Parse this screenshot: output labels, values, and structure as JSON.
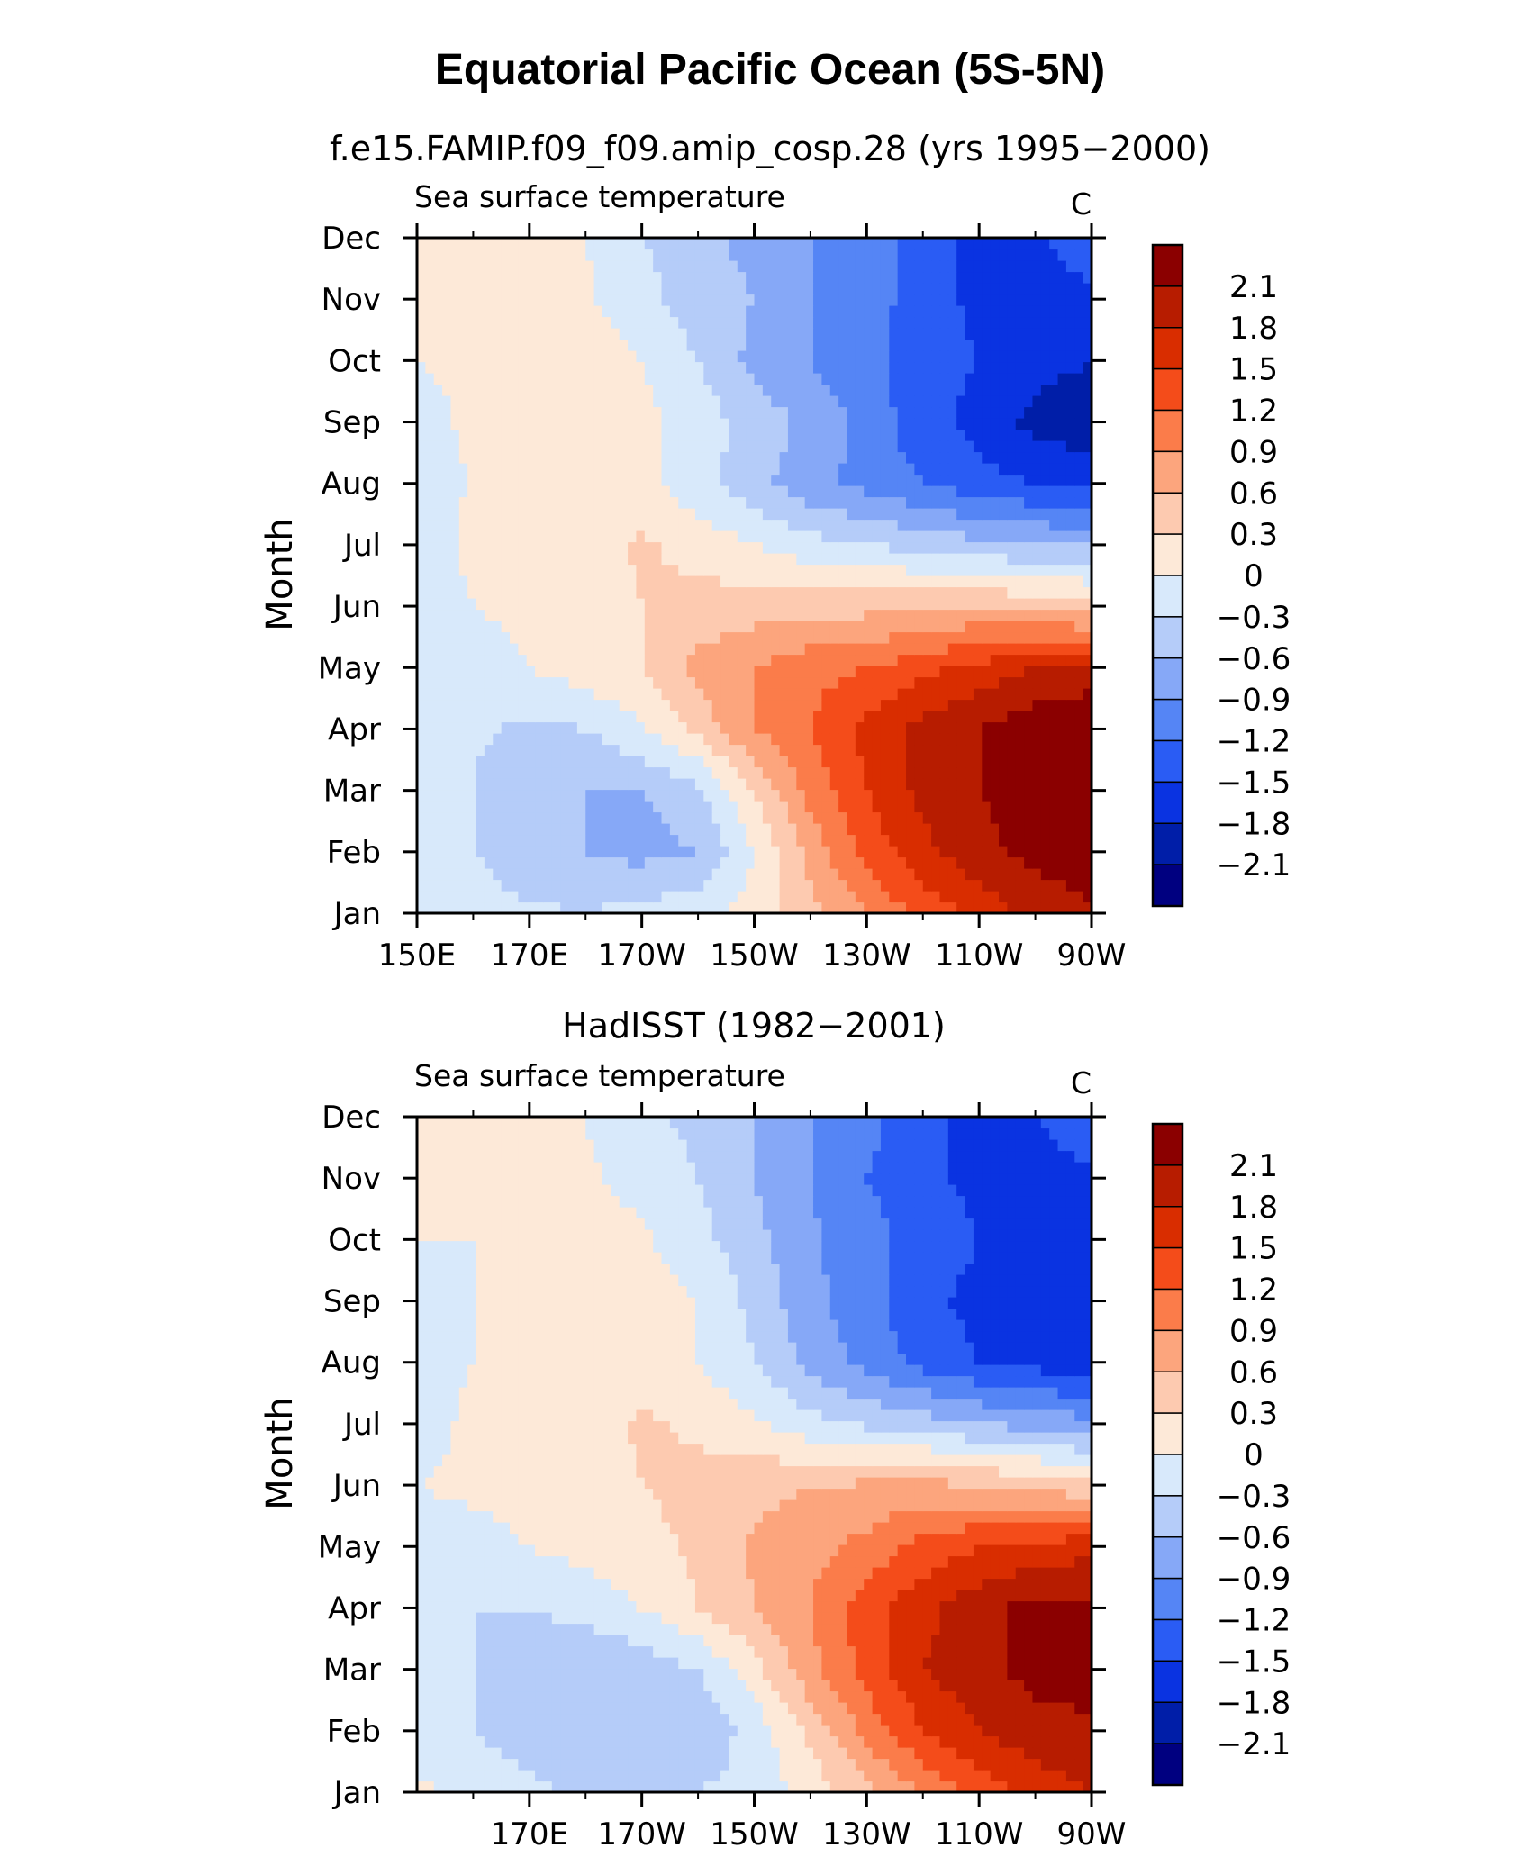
{
  "page": {
    "title": "Equatorial Pacific Ocean (5S-5N)",
    "colorbar_levels": [
      2.1,
      1.8,
      1.5,
      1.2,
      0.9,
      0.6,
      0.3,
      0,
      -0.3,
      -0.6,
      -0.9,
      -1.2,
      -1.5,
      -1.8,
      -2.1
    ],
    "colorbar_labels": [
      "2.1",
      "1.8",
      "1.5",
      "1.2",
      "0.9",
      "0.6",
      "0.3",
      "0",
      "−0.3",
      "−0.6",
      "−0.9",
      "−1.2",
      "−1.5",
      "−1.8",
      "−2.1"
    ],
    "colorbar_colors": [
      "#8b0000",
      "#b71c00",
      "#d92d00",
      "#f44c1a",
      "#fb7c4a",
      "#fca57d",
      "#fdcab0",
      "#fde9d8",
      "#d8e9fb",
      "#b5ccf9",
      "#86a8f7",
      "#5585f5",
      "#2a5cf4",
      "#0a33e1",
      "#001ea8",
      "#000080"
    ]
  },
  "chart_data": [
    {
      "type": "heatmap",
      "title": "f.e15.FAMIP.f09_f09.amip_cosp.28 (yrs 1995−2000)",
      "left_string": "Sea surface temperature",
      "right_string": "C",
      "ylabel": "Month",
      "xlabel": "",
      "x": [
        150,
        160,
        170,
        180,
        190,
        200,
        210,
        220,
        230,
        240,
        250,
        260,
        270
      ],
      "x_ticklabels": [
        "150E",
        "170E",
        "170W",
        "150W",
        "130W",
        "110W",
        "90W"
      ],
      "y_ticklabels": [
        "Jan",
        "Feb",
        "Mar",
        "Apr",
        "May",
        "Jun",
        "Jul",
        "Aug",
        "Sep",
        "Oct",
        "Nov",
        "Dec"
      ],
      "xlim": [
        150,
        270
      ],
      "values": [
        [
          0.0,
          -0.15,
          -0.25,
          -0.3,
          -0.2,
          -0.1,
          0.1,
          0.5,
          0.9,
          1.3,
          1.6,
          1.9,
          2.1
        ],
        [
          -0.2,
          -0.3,
          -0.5,
          -0.6,
          -0.7,
          -0.6,
          0.0,
          0.7,
          1.3,
          1.7,
          2.0,
          2.2,
          2.2
        ],
        [
          -0.15,
          -0.3,
          -0.6,
          -0.6,
          -0.6,
          -0.4,
          0.3,
          1.0,
          1.5,
          1.9,
          2.1,
          2.3,
          2.4
        ],
        [
          -0.2,
          -0.25,
          -0.35,
          -0.3,
          -0.05,
          0.4,
          0.9,
          1.2,
          1.6,
          1.9,
          2.1,
          2.3,
          2.4
        ],
        [
          -0.1,
          -0.1,
          0.0,
          0.15,
          0.3,
          0.7,
          0.9,
          1.1,
          1.2,
          1.4,
          1.6,
          1.8,
          1.9
        ],
        [
          -0.1,
          0.0,
          0.05,
          0.15,
          0.3,
          0.4,
          0.45,
          0.5,
          0.5,
          0.55,
          0.6,
          0.5,
          0.4
        ],
        [
          -0.1,
          0.05,
          0.1,
          0.15,
          0.35,
          0.2,
          0.0,
          -0.2,
          -0.3,
          -0.4,
          -0.5,
          -0.6,
          -0.6
        ],
        [
          -0.05,
          0.0,
          0.05,
          0.1,
          0.1,
          -0.2,
          -0.5,
          -0.8,
          -1.0,
          -1.2,
          -1.4,
          -1.5,
          -1.6
        ],
        [
          -0.1,
          0.05,
          0.15,
          0.2,
          0.1,
          -0.15,
          -0.4,
          -0.7,
          -1.0,
          -1.4,
          -1.6,
          -1.9,
          -2.0
        ],
        [
          0.0,
          0.05,
          0.1,
          0.15,
          0.0,
          -0.3,
          -0.7,
          -0.9,
          -1.1,
          -1.4,
          -1.5,
          -1.7,
          -1.8
        ],
        [
          0.1,
          0.05,
          0.05,
          0.05,
          -0.2,
          -0.45,
          -0.6,
          -0.9,
          -1.1,
          -1.3,
          -1.6,
          -1.7,
          -1.6
        ],
        [
          0.3,
          0.15,
          0.1,
          0.0,
          -0.3,
          -0.5,
          -0.7,
          -0.9,
          -1.1,
          -1.3,
          -1.6,
          -1.6,
          -1.2
        ]
      ]
    },
    {
      "type": "heatmap",
      "title": "HadISST (1982−2001)",
      "left_string": "Sea surface temperature",
      "right_string": "C",
      "ylabel": "Month",
      "xlabel": "",
      "x": [
        150,
        160,
        170,
        180,
        190,
        200,
        210,
        220,
        230,
        240,
        250,
        260,
        270
      ],
      "x_ticklabels": [
        "170E",
        "170W",
        "150W",
        "130W",
        "110W",
        "90W"
      ],
      "y_ticklabels": [
        "Jan",
        "Feb",
        "Mar",
        "Apr",
        "May",
        "Jun",
        "Jul",
        "Aug",
        "Sep",
        "Oct",
        "Nov",
        "Dec"
      ],
      "xlim": [
        150,
        270
      ],
      "values": [
        [
          0.05,
          -0.1,
          -0.2,
          -0.4,
          -0.4,
          -0.3,
          -0.2,
          0.1,
          0.5,
          0.9,
          1.3,
          1.6,
          1.8
        ],
        [
          -0.1,
          -0.3,
          -0.5,
          -0.6,
          -0.6,
          -0.5,
          -0.2,
          0.4,
          1.0,
          1.5,
          1.8,
          2.0,
          2.0
        ],
        [
          -0.15,
          -0.3,
          -0.55,
          -0.55,
          -0.5,
          -0.3,
          0.2,
          0.8,
          1.3,
          1.8,
          2.0,
          2.2,
          2.3
        ],
        [
          -0.2,
          -0.3,
          -0.3,
          -0.2,
          0.0,
          0.3,
          0.6,
          0.9,
          1.4,
          1.7,
          2.0,
          2.2,
          2.2
        ],
        [
          -0.1,
          -0.1,
          0.0,
          0.1,
          0.2,
          0.35,
          0.65,
          0.8,
          1.0,
          1.3,
          1.5,
          1.6,
          1.7
        ],
        [
          0.0,
          0.05,
          0.1,
          0.15,
          0.3,
          0.4,
          0.5,
          0.6,
          0.65,
          0.7,
          0.6,
          0.5,
          0.35
        ],
        [
          -0.1,
          0.05,
          0.1,
          0.15,
          0.35,
          0.25,
          0.05,
          -0.2,
          -0.35,
          -0.45,
          -0.6,
          -0.7,
          -0.8
        ],
        [
          -0.1,
          0.0,
          0.05,
          0.15,
          0.15,
          0.0,
          -0.3,
          -0.7,
          -1.0,
          -1.3,
          -1.5,
          -1.6,
          -1.7
        ],
        [
          -0.1,
          0.0,
          0.15,
          0.3,
          0.15,
          0.0,
          -0.4,
          -0.8,
          -1.1,
          -1.4,
          -1.6,
          -1.8,
          -1.8
        ],
        [
          0.0,
          0.0,
          0.05,
          0.1,
          0.05,
          -0.2,
          -0.5,
          -0.85,
          -1.1,
          -1.3,
          -1.5,
          -1.7,
          -1.8
        ],
        [
          0.05,
          0.05,
          0.05,
          0.05,
          -0.1,
          -0.3,
          -0.6,
          -0.9,
          -1.2,
          -1.4,
          -1.6,
          -1.7,
          -1.6
        ],
        [
          0.1,
          0.1,
          0.05,
          0.0,
          -0.2,
          -0.4,
          -0.6,
          -0.9,
          -1.1,
          -1.4,
          -1.6,
          -1.5,
          -1.2
        ]
      ]
    }
  ]
}
